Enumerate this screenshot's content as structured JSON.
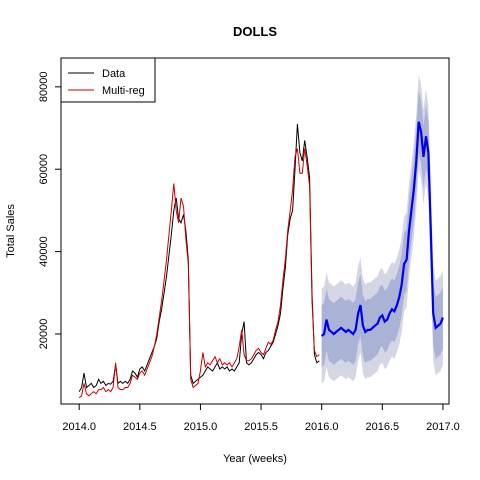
{
  "chart_data": {
    "type": "line",
    "title": "DOLLS",
    "xlabel": "Year (weeks)",
    "ylabel": "Total Sales",
    "xlim": [
      2013.85,
      2017.05
    ],
    "ylim": [
      3000,
      87000
    ],
    "x_ticks": [
      2014.0,
      2014.5,
      2015.0,
      2015.5,
      2016.0,
      2016.5,
      2017.0
    ],
    "x_tick_labels": [
      "2014.0",
      "2014.5",
      "2015.0",
      "2015.5",
      "2016.0",
      "2016.5",
      "2017.0"
    ],
    "y_ticks": [
      20000,
      40000,
      60000,
      80000
    ],
    "y_tick_labels": [
      "20000",
      "40000",
      "60000",
      "80000"
    ],
    "legend": {
      "position": "top-left",
      "entries": [
        "Data",
        "Multi-reg"
      ]
    },
    "colors": {
      "data": "#000000",
      "multireg": "#cc0000",
      "forecast": "#0000ee",
      "band80": "#aab2d6",
      "band95": "#d4d6e4"
    },
    "series": [
      {
        "name": "Data",
        "x": [
          2014.0,
          2014.02,
          2014.04,
          2014.06,
          2014.08,
          2014.1,
          2014.12,
          2014.14,
          2014.16,
          2014.18,
          2014.2,
          2014.22,
          2014.24,
          2014.26,
          2014.28,
          2014.3,
          2014.32,
          2014.34,
          2014.36,
          2014.38,
          2014.4,
          2014.42,
          2014.44,
          2014.46,
          2014.48,
          2014.5,
          2014.52,
          2014.54,
          2014.56,
          2014.58,
          2014.6,
          2014.62,
          2014.64,
          2014.66,
          2014.68,
          2014.7,
          2014.72,
          2014.74,
          2014.76,
          2014.78,
          2014.8,
          2014.82,
          2014.84,
          2014.86,
          2014.88,
          2014.9,
          2014.92,
          2014.94,
          2014.96,
          2014.98,
          2015.0,
          2015.02,
          2015.04,
          2015.06,
          2015.08,
          2015.1,
          2015.12,
          2015.14,
          2015.16,
          2015.18,
          2015.2,
          2015.22,
          2015.24,
          2015.26,
          2015.28,
          2015.3,
          2015.32,
          2015.34,
          2015.36,
          2015.38,
          2015.4,
          2015.42,
          2015.44,
          2015.46,
          2015.48,
          2015.5,
          2015.52,
          2015.54,
          2015.56,
          2015.58,
          2015.6,
          2015.62,
          2015.64,
          2015.66,
          2015.68,
          2015.7,
          2015.72,
          2015.74,
          2015.76,
          2015.78,
          2015.8,
          2015.82,
          2015.84,
          2015.86,
          2015.88,
          2015.9,
          2015.92,
          2015.94,
          2015.96,
          2015.98
        ],
        "y": [
          6000,
          7000,
          10500,
          7000,
          7500,
          8000,
          7000,
          7500,
          9000,
          8000,
          8500,
          7500,
          8000,
          7800,
          8500,
          12500,
          8000,
          8500,
          8000,
          8500,
          8000,
          9000,
          11000,
          10500,
          9500,
          11500,
          12000,
          11000,
          12500,
          14000,
          15500,
          17000,
          19000,
          23000,
          26000,
          30000,
          34000,
          39000,
          44000,
          50000,
          53000,
          48000,
          47000,
          49000,
          45000,
          38000,
          10000,
          8000,
          8500,
          9000,
          9500,
          10000,
          11000,
          12000,
          11500,
          11000,
          12000,
          13000,
          11500,
          12000,
          11500,
          12000,
          11000,
          11500,
          11000,
          12000,
          13000,
          20000,
          23000,
          13000,
          12500,
          13000,
          14000,
          15000,
          15500,
          15000,
          14000,
          15500,
          16000,
          17000,
          18000,
          20000,
          22000,
          25000,
          31000,
          36000,
          44000,
          48000,
          50000,
          60000,
          71000,
          64000,
          62000,
          67000,
          63000,
          58000,
          30000,
          15000,
          13000,
          13500
        ]
      },
      {
        "name": "Multi-reg",
        "x": [
          2014.0,
          2014.02,
          2014.04,
          2014.06,
          2014.08,
          2014.1,
          2014.12,
          2014.14,
          2014.16,
          2014.18,
          2014.2,
          2014.22,
          2014.24,
          2014.26,
          2014.28,
          2014.3,
          2014.32,
          2014.34,
          2014.36,
          2014.38,
          2014.4,
          2014.42,
          2014.44,
          2014.46,
          2014.48,
          2014.5,
          2014.52,
          2014.54,
          2014.56,
          2014.58,
          2014.6,
          2014.62,
          2014.64,
          2014.66,
          2014.68,
          2014.7,
          2014.72,
          2014.74,
          2014.76,
          2014.78,
          2014.8,
          2014.82,
          2014.84,
          2014.86,
          2014.88,
          2014.9,
          2014.92,
          2014.94,
          2014.96,
          2014.98,
          2015.0,
          2015.02,
          2015.04,
          2015.06,
          2015.08,
          2015.1,
          2015.12,
          2015.14,
          2015.16,
          2015.18,
          2015.2,
          2015.22,
          2015.24,
          2015.26,
          2015.28,
          2015.3,
          2015.32,
          2015.34,
          2015.36,
          2015.38,
          2015.4,
          2015.42,
          2015.44,
          2015.46,
          2015.48,
          2015.5,
          2015.52,
          2015.54,
          2015.56,
          2015.58,
          2015.6,
          2015.62,
          2015.64,
          2015.66,
          2015.68,
          2015.7,
          2015.72,
          2015.74,
          2015.76,
          2015.78,
          2015.8,
          2015.82,
          2015.84,
          2015.86,
          2015.88,
          2015.9,
          2015.92,
          2015.94,
          2015.96,
          2015.98
        ],
        "y": [
          4500,
          5000,
          8000,
          5500,
          5000,
          5500,
          6000,
          5500,
          6500,
          6500,
          7000,
          6000,
          6500,
          6000,
          7000,
          13000,
          7000,
          6500,
          6500,
          7000,
          7000,
          8000,
          10000,
          9500,
          9000,
          10500,
          11000,
          10000,
          11500,
          13000,
          14500,
          17000,
          20000,
          24000,
          28000,
          33000,
          38000,
          44000,
          50000,
          56500,
          50000,
          47000,
          53000,
          51000,
          43000,
          37000,
          9000,
          7000,
          7500,
          8000,
          11000,
          15500,
          12000,
          13000,
          12500,
          13500,
          14500,
          13000,
          14000,
          12500,
          13000,
          12500,
          13000,
          12000,
          13000,
          14000,
          17000,
          21000,
          15000,
          13500,
          13500,
          14000,
          15000,
          16000,
          16500,
          15500,
          15000,
          16500,
          18000,
          17500,
          18500,
          21000,
          23000,
          27000,
          33000,
          38000,
          45000,
          50000,
          55000,
          63000,
          65000,
          59000,
          59000,
          65000,
          61000,
          56000,
          28000,
          16000,
          14500,
          15000
        ]
      },
      {
        "name": "",
        "x": [
          2016.0,
          2016.02,
          2016.04,
          2016.06,
          2016.08,
          2016.1,
          2016.12,
          2016.14,
          2016.16,
          2016.18,
          2016.2,
          2016.22,
          2016.24,
          2016.26,
          2016.28,
          2016.3,
          2016.32,
          2016.34,
          2016.36,
          2016.38,
          2016.4,
          2016.42,
          2016.44,
          2016.46,
          2016.48,
          2016.5,
          2016.52,
          2016.54,
          2016.56,
          2016.58,
          2016.6,
          2016.62,
          2016.64,
          2016.66,
          2016.68,
          2016.7,
          2016.72,
          2016.74,
          2016.76,
          2016.78,
          2016.8,
          2016.82,
          2016.84,
          2016.86,
          2016.88,
          2016.9,
          2016.92,
          2016.94,
          2016.96,
          2016.98,
          2017.0
        ],
        "y": [
          19500,
          20000,
          23500,
          21000,
          20500,
          20000,
          20500,
          21000,
          21500,
          21000,
          20500,
          21000,
          20500,
          20000,
          21000,
          25000,
          27000,
          22000,
          20500,
          21000,
          21000,
          21500,
          22000,
          22500,
          24000,
          24500,
          23000,
          23500,
          25000,
          26000,
          25500,
          27000,
          29000,
          32000,
          37000,
          38000,
          45000,
          50000,
          55000,
          62000,
          71500,
          69000,
          63000,
          68000,
          64000,
          45000,
          25000,
          21500,
          22000,
          22500,
          24000
        ],
        "lower80": [
          12000,
          12500,
          16000,
          13500,
          13000,
          12500,
          13000,
          13500,
          14000,
          13500,
          13000,
          13500,
          13000,
          12500,
          13500,
          17500,
          19500,
          14500,
          13000,
          13500,
          13500,
          14000,
          14500,
          15000,
          16500,
          17000,
          15500,
          16000,
          17500,
          18500,
          18000,
          19500,
          21500,
          24500,
          29500,
          30500,
          37500,
          42500,
          47500,
          54500,
          64000,
          61500,
          55500,
          60500,
          56500,
          37500,
          17500,
          14000,
          14500,
          15000,
          16500
        ],
        "upper80": [
          27000,
          27500,
          31000,
          28500,
          28000,
          27500,
          28000,
          28500,
          29000,
          28500,
          28000,
          28500,
          28000,
          27500,
          28500,
          32500,
          34500,
          29500,
          28000,
          28500,
          28500,
          29000,
          29500,
          30000,
          31500,
          32000,
          30500,
          31000,
          32500,
          33500,
          33000,
          34500,
          36500,
          39500,
          44500,
          45500,
          52500,
          57500,
          62500,
          69500,
          79000,
          76500,
          70500,
          75500,
          71500,
          52500,
          32500,
          29000,
          29500,
          30000,
          31500
        ],
        "lower95": [
          8000,
          8500,
          12000,
          9500,
          9000,
          8500,
          9000,
          9500,
          10000,
          9500,
          9000,
          9500,
          9000,
          8500,
          9500,
          13500,
          15500,
          10500,
          9000,
          9500,
          9500,
          10000,
          10500,
          11000,
          12500,
          13000,
          11500,
          12000,
          13500,
          14500,
          14000,
          15500,
          17500,
          20500,
          25500,
          26500,
          33500,
          38500,
          43500,
          50500,
          60000,
          57500,
          51500,
          56500,
          52500,
          33500,
          13500,
          10000,
          10500,
          11000,
          12500
        ],
        "upper95": [
          31000,
          31500,
          35000,
          32500,
          32000,
          31500,
          32000,
          32500,
          33000,
          32500,
          32000,
          32500,
          32000,
          31500,
          32500,
          36500,
          38500,
          33500,
          32000,
          32500,
          32500,
          33000,
          33500,
          34000,
          35500,
          36000,
          34500,
          35000,
          36500,
          37500,
          37000,
          38500,
          40500,
          43500,
          48500,
          49500,
          56500,
          61500,
          66500,
          73500,
          83000,
          80500,
          74500,
          79500,
          75500,
          56500,
          36500,
          33000,
          33500,
          34000,
          35500
        ]
      }
    ]
  }
}
